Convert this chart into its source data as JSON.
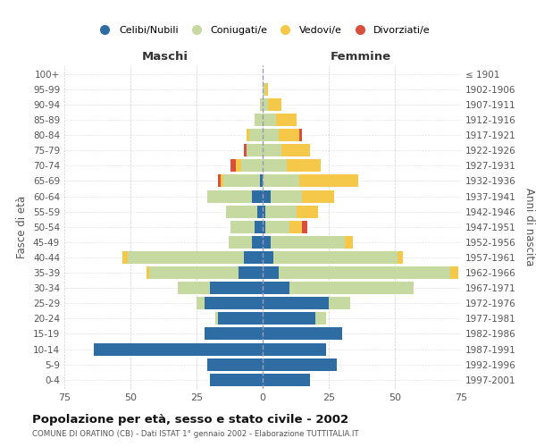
{
  "age_groups": [
    "100+",
    "95-99",
    "90-94",
    "85-89",
    "80-84",
    "75-79",
    "70-74",
    "65-69",
    "60-64",
    "55-59",
    "50-54",
    "45-49",
    "40-44",
    "35-39",
    "30-34",
    "25-29",
    "20-24",
    "15-19",
    "10-14",
    "5-9",
    "0-4"
  ],
  "birth_years": [
    "≤ 1901",
    "1902-1906",
    "1907-1911",
    "1912-1916",
    "1917-1921",
    "1922-1926",
    "1927-1931",
    "1932-1936",
    "1937-1941",
    "1942-1946",
    "1947-1951",
    "1952-1956",
    "1957-1961",
    "1962-1966",
    "1967-1971",
    "1972-1976",
    "1977-1981",
    "1982-1986",
    "1987-1991",
    "1992-1996",
    "1997-2001"
  ],
  "males": {
    "celibi": [
      0,
      0,
      0,
      0,
      0,
      0,
      0,
      1,
      4,
      2,
      3,
      4,
      7,
      9,
      20,
      22,
      17,
      22,
      64,
      21,
      20
    ],
    "coniugati": [
      0,
      0,
      1,
      3,
      5,
      6,
      8,
      14,
      17,
      12,
      9,
      9,
      44,
      34,
      12,
      3,
      1,
      0,
      0,
      0,
      0
    ],
    "vedovi": [
      0,
      0,
      0,
      0,
      1,
      0,
      2,
      1,
      0,
      0,
      0,
      0,
      2,
      1,
      0,
      0,
      0,
      0,
      0,
      0,
      0
    ],
    "divorziati": [
      0,
      0,
      0,
      0,
      0,
      1,
      2,
      1,
      0,
      0,
      0,
      0,
      0,
      0,
      0,
      0,
      0,
      0,
      0,
      0,
      0
    ]
  },
  "females": {
    "nubili": [
      0,
      0,
      0,
      0,
      0,
      0,
      0,
      0,
      3,
      1,
      1,
      3,
      4,
      6,
      10,
      25,
      20,
      30,
      24,
      28,
      18
    ],
    "coniugate": [
      0,
      1,
      2,
      5,
      6,
      7,
      9,
      14,
      12,
      12,
      9,
      28,
      47,
      65,
      47,
      8,
      4,
      0,
      0,
      0,
      0
    ],
    "vedove": [
      0,
      1,
      5,
      8,
      8,
      11,
      13,
      22,
      12,
      8,
      5,
      3,
      2,
      3,
      0,
      0,
      0,
      0,
      0,
      0,
      0
    ],
    "divorziate": [
      0,
      0,
      0,
      0,
      1,
      0,
      0,
      0,
      0,
      0,
      2,
      0,
      0,
      0,
      0,
      0,
      0,
      0,
      0,
      0,
      0
    ]
  },
  "colors": {
    "celibi": "#2E6DA4",
    "coniugati": "#C5D9A0",
    "vedovi": "#F5C84A",
    "divorziati": "#D94F3D"
  },
  "title": "Popolazione per età, sesso e stato civile - 2002",
  "subtitle": "COMUNE DI ORATINO (CB) - Dati ISTAT 1° gennaio 2002 - Elaborazione TUTTITALIA.IT",
  "ylabel_left": "Fasce di età",
  "ylabel_right": "Anni di nascita",
  "xlabel_left": "Maschi",
  "xlabel_right": "Femmine",
  "xlim": 75,
  "background_color": "#ffffff",
  "grid_color": "#cccccc",
  "bar_height": 0.82
}
